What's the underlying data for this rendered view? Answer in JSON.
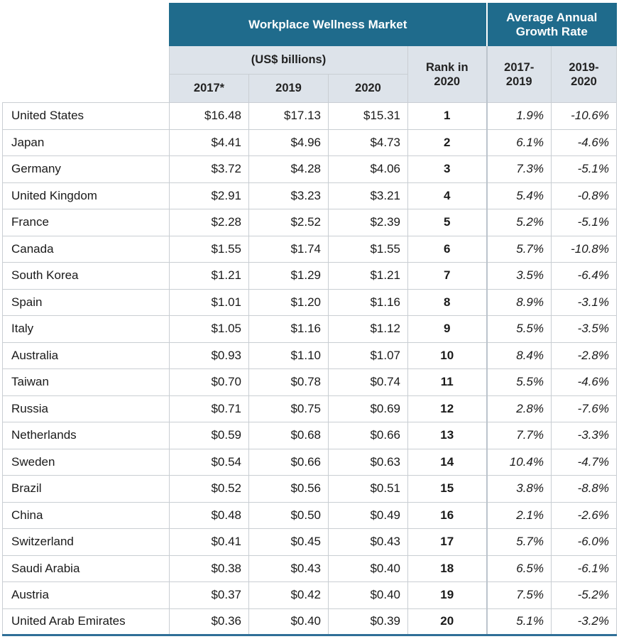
{
  "chart_data": {
    "type": "table",
    "header": {
      "market_title": "Workplace Wellness Market",
      "growth_title": "Average Annual Growth Rate",
      "units": "(US$ billions)",
      "years": [
        "2017*",
        "2019",
        "2020"
      ],
      "rank_label": "Rank in 2020",
      "growth_periods": [
        "2017-2019",
        "2019-2020"
      ]
    },
    "rows": [
      {
        "country": "United States",
        "y2017": "$16.48",
        "y2019": "$17.13",
        "y2020": "$15.31",
        "rank": "1",
        "g1": "1.9%",
        "g2": "-10.6%"
      },
      {
        "country": "Japan",
        "y2017": "$4.41",
        "y2019": "$4.96",
        "y2020": "$4.73",
        "rank": "2",
        "g1": "6.1%",
        "g2": "-4.6%"
      },
      {
        "country": "Germany",
        "y2017": "$3.72",
        "y2019": "$4.28",
        "y2020": "$4.06",
        "rank": "3",
        "g1": "7.3%",
        "g2": "-5.1%"
      },
      {
        "country": "United Kingdom",
        "y2017": "$2.91",
        "y2019": "$3.23",
        "y2020": "$3.21",
        "rank": "4",
        "g1": "5.4%",
        "g2": "-0.8%"
      },
      {
        "country": "France",
        "y2017": "$2.28",
        "y2019": "$2.52",
        "y2020": "$2.39",
        "rank": "5",
        "g1": "5.2%",
        "g2": "-5.1%"
      },
      {
        "country": "Canada",
        "y2017": "$1.55",
        "y2019": "$1.74",
        "y2020": "$1.55",
        "rank": "6",
        "g1": "5.7%",
        "g2": "-10.8%"
      },
      {
        "country": "South Korea",
        "y2017": "$1.21",
        "y2019": "$1.29",
        "y2020": "$1.21",
        "rank": "7",
        "g1": "3.5%",
        "g2": "-6.4%"
      },
      {
        "country": "Spain",
        "y2017": "$1.01",
        "y2019": "$1.20",
        "y2020": "$1.16",
        "rank": "8",
        "g1": "8.9%",
        "g2": "-3.1%"
      },
      {
        "country": "Italy",
        "y2017": "$1.05",
        "y2019": "$1.16",
        "y2020": "$1.12",
        "rank": "9",
        "g1": "5.5%",
        "g2": "-3.5%"
      },
      {
        "country": "Australia",
        "y2017": "$0.93",
        "y2019": "$1.10",
        "y2020": "$1.07",
        "rank": "10",
        "g1": "8.4%",
        "g2": "-2.8%"
      },
      {
        "country": "Taiwan",
        "y2017": "$0.70",
        "y2019": "$0.78",
        "y2020": "$0.74",
        "rank": "11",
        "g1": "5.5%",
        "g2": "-4.6%"
      },
      {
        "country": "Russia",
        "y2017": "$0.71",
        "y2019": "$0.75",
        "y2020": "$0.69",
        "rank": "12",
        "g1": "2.8%",
        "g2": "-7.6%"
      },
      {
        "country": "Netherlands",
        "y2017": "$0.59",
        "y2019": "$0.68",
        "y2020": "$0.66",
        "rank": "13",
        "g1": "7.7%",
        "g2": "-3.3%"
      },
      {
        "country": "Sweden",
        "y2017": "$0.54",
        "y2019": "$0.66",
        "y2020": "$0.63",
        "rank": "14",
        "g1": "10.4%",
        "g2": "-4.7%"
      },
      {
        "country": "Brazil",
        "y2017": "$0.52",
        "y2019": "$0.56",
        "y2020": "$0.51",
        "rank": "15",
        "g1": "3.8%",
        "g2": "-8.8%"
      },
      {
        "country": "China",
        "y2017": "$0.48",
        "y2019": "$0.50",
        "y2020": "$0.49",
        "rank": "16",
        "g1": "2.1%",
        "g2": "-2.6%"
      },
      {
        "country": "Switzerland",
        "y2017": "$0.41",
        "y2019": "$0.45",
        "y2020": "$0.43",
        "rank": "17",
        "g1": "5.7%",
        "g2": "-6.0%"
      },
      {
        "country": "Saudi Arabia",
        "y2017": "$0.38",
        "y2019": "$0.43",
        "y2020": "$0.40",
        "rank": "18",
        "g1": "6.5%",
        "g2": "-6.1%"
      },
      {
        "country": "Austria",
        "y2017": "$0.37",
        "y2019": "$0.42",
        "y2020": "$0.40",
        "rank": "19",
        "g1": "7.5%",
        "g2": "-5.2%"
      },
      {
        "country": "United Arab Emirates",
        "y2017": "$0.36",
        "y2019": "$0.40",
        "y2020": "$0.39",
        "rank": "20",
        "g1": "5.1%",
        "g2": "-3.2%"
      }
    ],
    "colors": {
      "header_dark": "#1f6b8c",
      "header_light": "#dde3ea",
      "bottom_rule": "#2f6f97"
    }
  }
}
